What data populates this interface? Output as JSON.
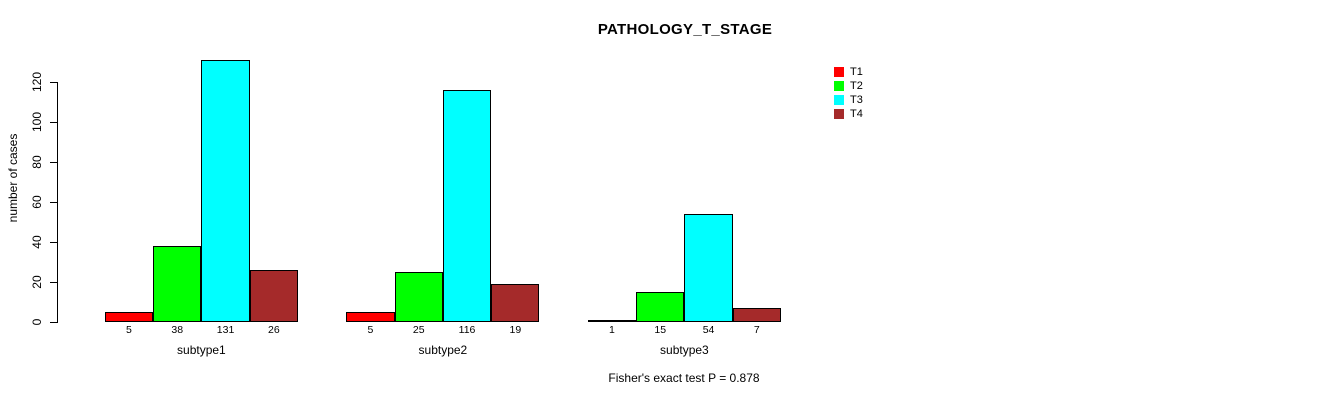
{
  "chart_data": {
    "type": "bar",
    "title": "PATHOLOGY_T_STAGE",
    "ylabel": "number of cases",
    "xlabel": "",
    "categories": [
      "subtype1",
      "subtype2",
      "subtype3"
    ],
    "series": [
      {
        "name": "T1",
        "color": "#ff0000",
        "values": [
          5,
          5,
          1
        ]
      },
      {
        "name": "T2",
        "color": "#00ff00",
        "values": [
          38,
          25,
          15
        ]
      },
      {
        "name": "T3",
        "color": "#00ffff",
        "values": [
          131,
          116,
          54
        ]
      },
      {
        "name": "T4",
        "color": "#a52a2a",
        "values": [
          26,
          19,
          7
        ]
      }
    ],
    "yticks": [
      0,
      20,
      40,
      60,
      80,
      100,
      120
    ],
    "ylim": [
      0,
      135
    ],
    "grid": false,
    "legend_position": "top-right",
    "bar_value_labels_shown": true,
    "annotation": "Fisher's exact test P = 0.878"
  }
}
